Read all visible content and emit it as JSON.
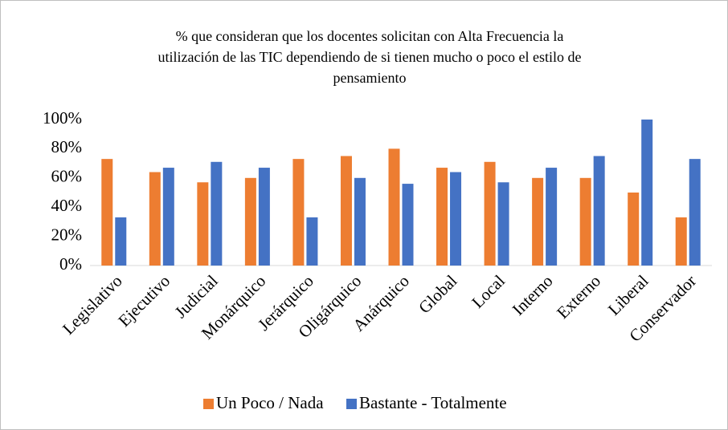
{
  "chart_data": {
    "type": "bar",
    "title": [
      "% que consideran que los docentes solicitan con Alta Frecuencia  la",
      "utilización de las TIC dependiendo de si tienen mucho o poco el estilo de",
      "pensamiento"
    ],
    "categories": [
      "Legislativo",
      "Ejecutivo",
      "Judicial",
      "Monárquico",
      "Jerárquico",
      "Oligárquico",
      "Anárquico",
      "Global",
      "Local",
      "Interno",
      "Externo",
      "Liberal",
      "Conservador"
    ],
    "series": [
      {
        "name": "Un Poco / Nada",
        "color": "#ed7d31",
        "values": [
          73,
          64,
          57,
          60,
          73,
          75,
          80,
          67,
          71,
          60,
          60,
          50,
          33
        ]
      },
      {
        "name": "Bastante - Totalmente",
        "color": "#4472c4",
        "values": [
          33,
          67,
          71,
          67,
          33,
          60,
          56,
          64,
          57,
          67,
          75,
          100,
          73
        ]
      }
    ],
    "ylim": [
      0,
      100
    ],
    "yticks": [
      {
        "value": 0,
        "label": "0%"
      },
      {
        "value": 20,
        "label": "20%"
      },
      {
        "value": 40,
        "label": "40%"
      },
      {
        "value": 60,
        "label": "60%"
      },
      {
        "value": 80,
        "label": "80%"
      },
      {
        "value": 100,
        "label": "100%"
      }
    ],
    "legend": "bottom"
  }
}
